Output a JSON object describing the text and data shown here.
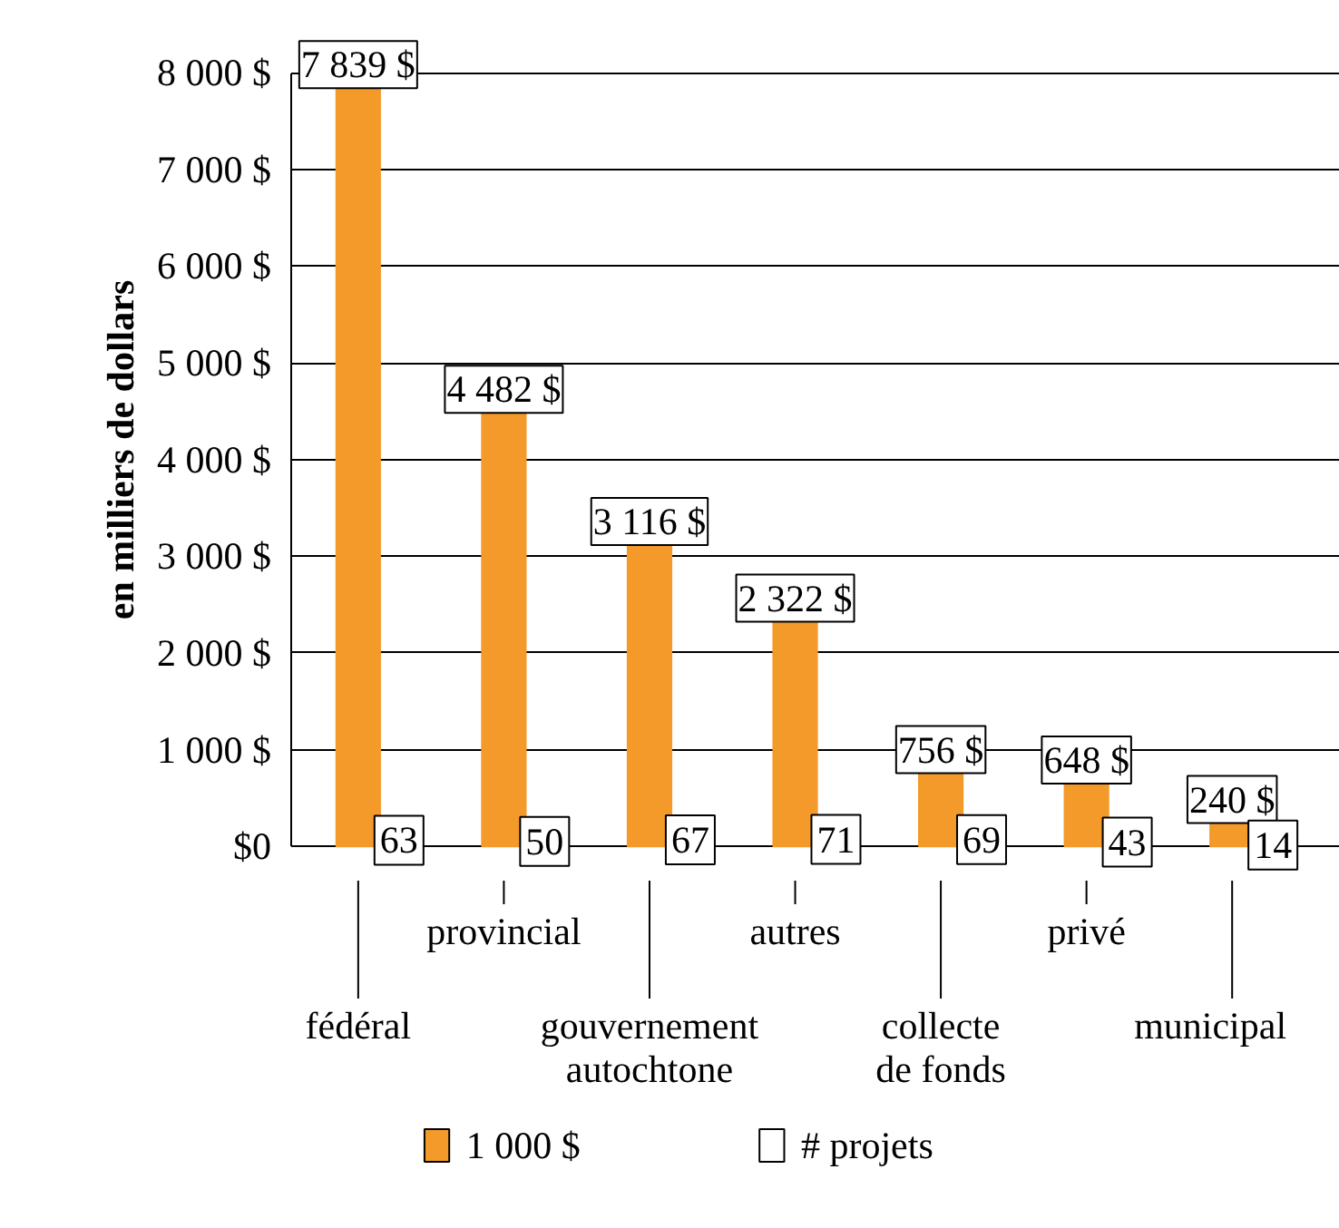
{
  "chart_data": {
    "type": "bar",
    "ylabel": "en milliers de dollars",
    "categories": [
      "fédéral",
      "provincial",
      "gouvernement\nautochtone",
      "autres",
      "collecte\nde fonds",
      "privé",
      "municipal"
    ],
    "series": [
      {
        "name": "1 000 $",
        "color": "#f39a2a",
        "values": [
          7839,
          4482,
          3116,
          2322,
          756,
          648,
          240
        ],
        "value_labels": [
          "7 839 $",
          "4 482 $",
          "3 116 $",
          "2 322 $",
          "756 $",
          "648 $",
          "240 $"
        ]
      },
      {
        "name": "# projets",
        "color": "#ffffff",
        "type": "scatter",
        "marker": "square",
        "values": [
          63,
          50,
          67,
          71,
          69,
          43,
          14
        ],
        "value_labels": [
          "63",
          "50",
          "67",
          "71",
          "69",
          "43",
          "14"
        ]
      }
    ],
    "ylim": [
      0,
      8000
    ],
    "yticks": [
      {
        "value": 0,
        "label": "$0"
      },
      {
        "value": 1000,
        "label": "1 000 $"
      },
      {
        "value": 2000,
        "label": "2 000 $"
      },
      {
        "value": 3000,
        "label": "3 000 $"
      },
      {
        "value": 4000,
        "label": "4 000 $"
      },
      {
        "value": 5000,
        "label": "5 000 $"
      },
      {
        "value": 6000,
        "label": "6 000 $"
      },
      {
        "value": 7000,
        "label": "7 000 $"
      },
      {
        "value": 8000,
        "label": "8 000 $"
      }
    ],
    "grid": "y",
    "legend": "bottom"
  }
}
